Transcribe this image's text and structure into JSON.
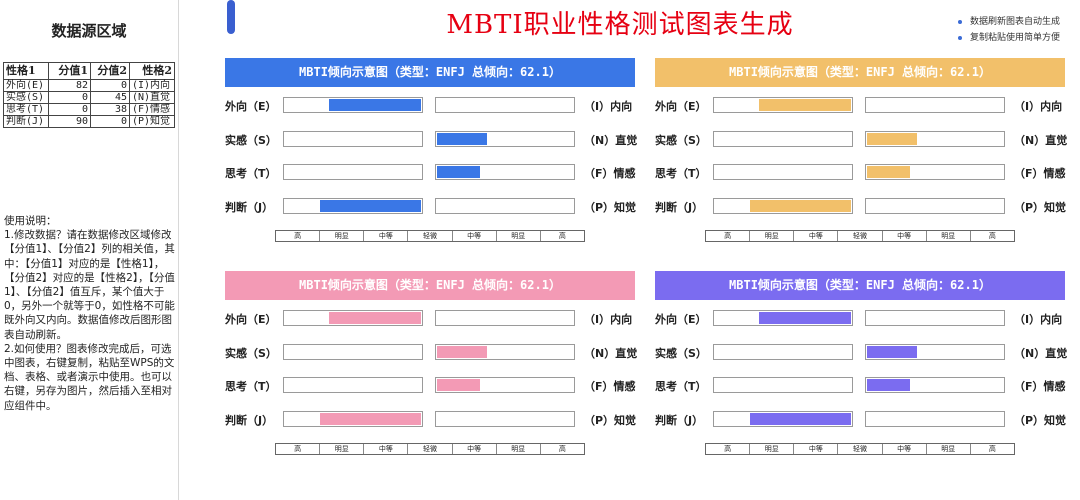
{
  "sidebar": {
    "title": "数据源区域",
    "table": {
      "headers": [
        "性格1",
        "分值1",
        "分值2",
        "性格2"
      ],
      "rows": [
        {
          "trait1": "外向(E)",
          "score1": "82",
          "score2": "0",
          "trait2": "(I)内向"
        },
        {
          "trait1": "实感(S)",
          "score1": "0",
          "score2": "45",
          "trait2": "(N)直觉"
        },
        {
          "trait1": "思考(T)",
          "score1": "0",
          "score2": "38",
          "trait2": "(F)情感"
        },
        {
          "trait1": "判断(J)",
          "score1": "90",
          "score2": "0",
          "trait2": "(P)知觉"
        }
      ]
    },
    "instructions": "使用说明：\n1.修改数据？请在数据修改区域修改【分值1】、【分值2】列的相关值，其中：【分值1】对应的是【性格1】，【分值2】对应的是【性格2】，【分值1】、【分值2】值互斥，某个值大于0，另外一个就等于0，如性格不可能既外向又内向。数据值修改后图形图表自动刷新。\n2.如何使用？图表修改完成后，可选中图表，右键复制，粘贴至WPS的文档、表格、或者演示中使用。也可以右键，另存为图片，然后插入至相对应组件中。"
  },
  "main": {
    "title": "MBTI职业性格测试图表生成",
    "notes": [
      "数据刷新图表自动生成",
      "复制粘贴使用简单方便"
    ]
  },
  "chart_data": [
    {
      "type": "bar",
      "title": "MBTI倾向示意图（类型：ENFJ 总倾向：62.1）",
      "color": "#3a77e6",
      "categories": [
        "外向（E）|（I）内向",
        "实感（S）|（N）直觉",
        "思考（T）|（F）情感",
        "判断（J）|（P）知觉"
      ],
      "left_labels": [
        "外向（E）",
        "实感（S）",
        "思考（T）",
        "判断（J）"
      ],
      "right_labels": [
        "（I）内向",
        "（N）直觉",
        "（F）情感",
        "（P）知觉"
      ],
      "series": [
        {
          "values_left": [
            82,
            0,
            0,
            90
          ],
          "values_right": [
            0,
            45,
            38,
            0
          ]
        }
      ],
      "ylim": [
        0,
        100
      ],
      "scale_labels": [
        "高",
        "明显",
        "中等",
        "轻微",
        "中等",
        "明显",
        "高"
      ]
    },
    {
      "type": "bar",
      "title": "MBTI倾向示意图（类型：ENFJ 总倾向：62.1）",
      "color": "#f2c06a",
      "categories": [
        "外向（E）|（I）内向",
        "实感（S）|（N）直觉",
        "思考（T）|（F）情感",
        "判断（J）|（P）知觉"
      ],
      "left_labels": [
        "外向（E）",
        "实感（S）",
        "思考（T）",
        "判断（J）"
      ],
      "right_labels": [
        "（I）内向",
        "（N）直觉",
        "（F）情感",
        "（P）知觉"
      ],
      "series": [
        {
          "values_left": [
            82,
            0,
            0,
            90
          ],
          "values_right": [
            0,
            45,
            38,
            0
          ]
        }
      ],
      "ylim": [
        0,
        100
      ],
      "scale_labels": [
        "高",
        "明显",
        "中等",
        "轻微",
        "中等",
        "明显",
        "高"
      ]
    },
    {
      "type": "bar",
      "title": "MBTI倾向示意图（类型：ENFJ 总倾向：62.1）",
      "color": "#f39ab5",
      "categories": [
        "外向（E）|（I）内向",
        "实感（S）|（N）直觉",
        "思考（T）|（F）情感",
        "判断（J）|（P）知觉"
      ],
      "left_labels": [
        "外向（E）",
        "实感（S）",
        "思考（T）",
        "判断（J）"
      ],
      "right_labels": [
        "（I）内向",
        "（N）直觉",
        "（F）情感",
        "（P）知觉"
      ],
      "series": [
        {
          "values_left": [
            82,
            0,
            0,
            90
          ],
          "values_right": [
            0,
            45,
            38,
            0
          ]
        }
      ],
      "ylim": [
        0,
        100
      ],
      "scale_labels": [
        "高",
        "明显",
        "中等",
        "轻微",
        "中等",
        "明显",
        "高"
      ]
    },
    {
      "type": "bar",
      "title": "MBTI倾向示意图（类型：ENFJ 总倾向：62.1）",
      "color": "#7b6cf0",
      "categories": [
        "外向（E）|（I）内向",
        "实感（S）|（N）直觉",
        "思考（T）|（F）情感",
        "判断（J）|（P）知觉"
      ],
      "left_labels": [
        "外向（E）",
        "实感（S）",
        "思考（T）",
        "判断（J）"
      ],
      "right_labels": [
        "（I）内向",
        "（N）直觉",
        "（F）情感",
        "（P）知觉"
      ],
      "series": [
        {
          "values_left": [
            82,
            0,
            0,
            90
          ],
          "values_right": [
            0,
            45,
            38,
            0
          ]
        }
      ],
      "ylim": [
        0,
        100
      ],
      "scale_labels": [
        "高",
        "明显",
        "中等",
        "轻微",
        "中等",
        "明显",
        "高"
      ]
    }
  ]
}
